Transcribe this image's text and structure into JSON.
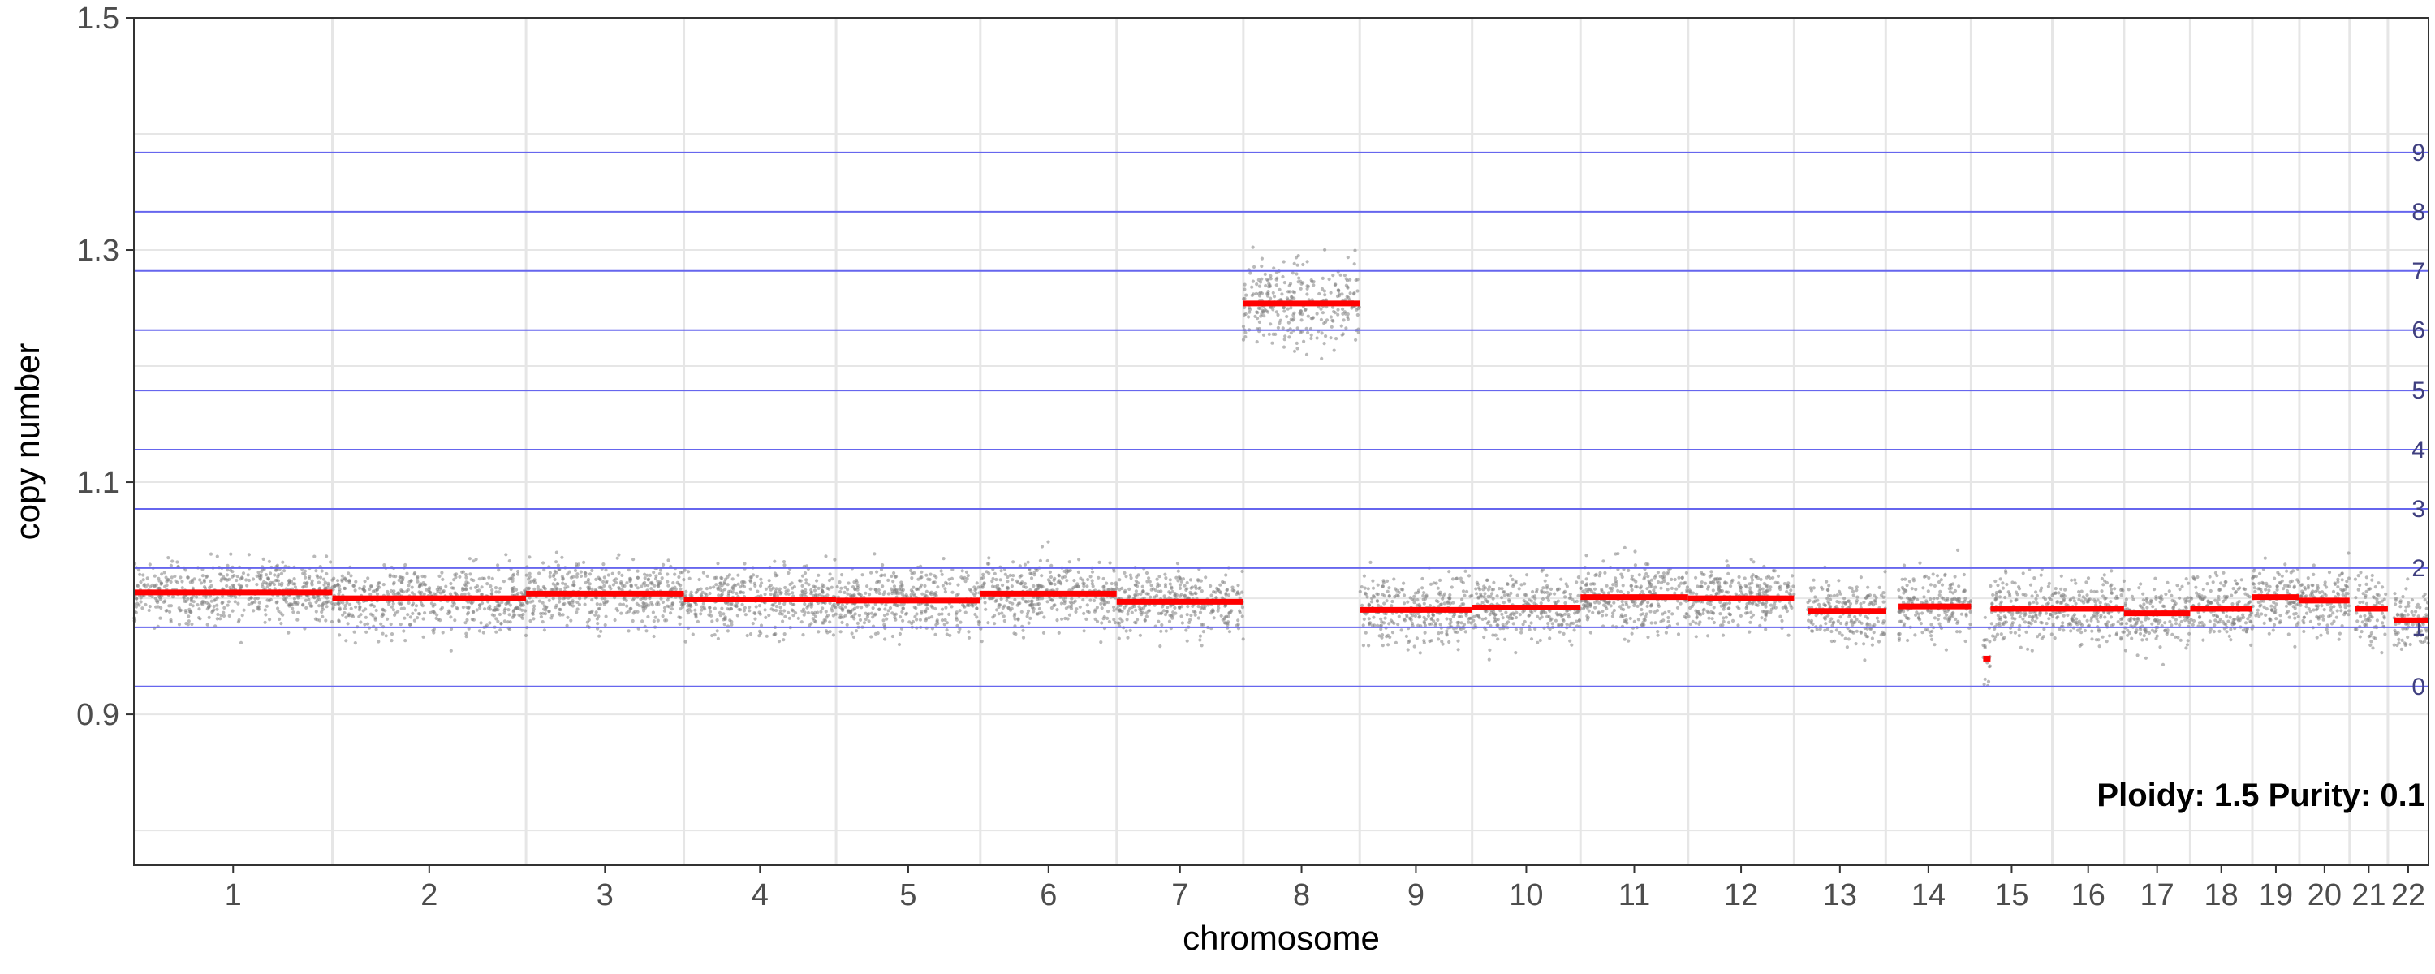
{
  "chart_data": {
    "type": "scatter",
    "title": "",
    "xlabel": "chromosome",
    "ylabel": "copy number",
    "ylim": [
      0.77,
      1.5
    ],
    "yticks": [
      "0.9",
      "1.1",
      "1.3",
      "1.5"
    ],
    "grid": true,
    "annotation": "Ploidy: 1.5 Purity: 0.1",
    "colors": {
      "points": "#7f7f7f",
      "segments": "#ff0000",
      "level_lines": "#6666ee",
      "grid": "#e6e6e6",
      "panel_border": "#333333"
    },
    "level_lines": [
      {
        "label": "0",
        "y": 0.924
      },
      {
        "label": "1",
        "y": 0.975
      },
      {
        "label": "2",
        "y": 1.026
      },
      {
        "label": "3",
        "y": 1.077
      },
      {
        "label": "4",
        "y": 1.128
      },
      {
        "label": "5",
        "y": 1.179
      },
      {
        "label": "6",
        "y": 1.231
      },
      {
        "label": "7",
        "y": 1.282
      },
      {
        "label": "8",
        "y": 1.333
      },
      {
        "label": "9",
        "y": 1.384
      }
    ],
    "chromosomes": [
      {
        "label": "1",
        "rel_size": 249,
        "segments": [
          {
            "from": 0.0,
            "to": 1.0,
            "value": 1.005
          }
        ]
      },
      {
        "label": "2",
        "rel_size": 243,
        "segments": [
          {
            "from": 0.0,
            "to": 1.0,
            "value": 1.0
          }
        ]
      },
      {
        "label": "3",
        "rel_size": 198,
        "segments": [
          {
            "from": 0.0,
            "to": 1.0,
            "value": 1.004
          }
        ]
      },
      {
        "label": "4",
        "rel_size": 191,
        "segments": [
          {
            "from": 0.0,
            "to": 1.0,
            "value": 0.999
          }
        ]
      },
      {
        "label": "5",
        "rel_size": 181,
        "segments": [
          {
            "from": 0.0,
            "to": 1.0,
            "value": 0.998
          }
        ]
      },
      {
        "label": "6",
        "rel_size": 171,
        "segments": [
          {
            "from": 0.0,
            "to": 1.0,
            "value": 1.004
          }
        ]
      },
      {
        "label": "7",
        "rel_size": 159,
        "segments": [
          {
            "from": 0.0,
            "to": 1.0,
            "value": 0.997
          }
        ]
      },
      {
        "label": "8",
        "rel_size": 146,
        "segments": [
          {
            "from": 0.0,
            "to": 1.0,
            "value": 1.254
          }
        ]
      },
      {
        "label": "9",
        "rel_size": 141,
        "segments": [
          {
            "from": 0.0,
            "to": 1.0,
            "value": 0.99
          }
        ]
      },
      {
        "label": "10",
        "rel_size": 136,
        "segments": [
          {
            "from": 0.0,
            "to": 1.0,
            "value": 0.992
          }
        ]
      },
      {
        "label": "11",
        "rel_size": 135,
        "segments": [
          {
            "from": 0.0,
            "to": 1.0,
            "value": 1.001
          }
        ]
      },
      {
        "label": "12",
        "rel_size": 133,
        "segments": [
          {
            "from": 0.0,
            "to": 1.0,
            "value": 1.0
          }
        ]
      },
      {
        "label": "13",
        "rel_size": 115,
        "segments": [
          {
            "from": 0.15,
            "to": 1.0,
            "value": 0.989
          }
        ]
      },
      {
        "label": "14",
        "rel_size": 107,
        "segments": [
          {
            "from": 0.15,
            "to": 1.0,
            "value": 0.993
          }
        ]
      },
      {
        "label": "15",
        "rel_size": 102,
        "segments": [
          {
            "from": 0.15,
            "to": 0.24,
            "value": 0.948
          },
          {
            "from": 0.24,
            "to": 1.0,
            "value": 0.991
          }
        ]
      },
      {
        "label": "16",
        "rel_size": 90,
        "segments": [
          {
            "from": 0.0,
            "to": 1.0,
            "value": 0.991
          }
        ]
      },
      {
        "label": "17",
        "rel_size": 83,
        "segments": [
          {
            "from": 0.0,
            "to": 1.0,
            "value": 0.987
          }
        ]
      },
      {
        "label": "18",
        "rel_size": 78,
        "segments": [
          {
            "from": 0.0,
            "to": 1.0,
            "value": 0.991
          }
        ]
      },
      {
        "label": "19",
        "rel_size": 59,
        "segments": [
          {
            "from": 0.0,
            "to": 1.0,
            "value": 1.001
          }
        ]
      },
      {
        "label": "20",
        "rel_size": 63,
        "segments": [
          {
            "from": 0.0,
            "to": 1.0,
            "value": 0.998
          }
        ]
      },
      {
        "label": "21",
        "rel_size": 48,
        "segments": [
          {
            "from": 0.15,
            "to": 1.0,
            "value": 0.991
          }
        ]
      },
      {
        "label": "22",
        "rel_size": 51,
        "segments": [
          {
            "from": 0.15,
            "to": 1.0,
            "value": 0.981
          }
        ]
      }
    ]
  }
}
